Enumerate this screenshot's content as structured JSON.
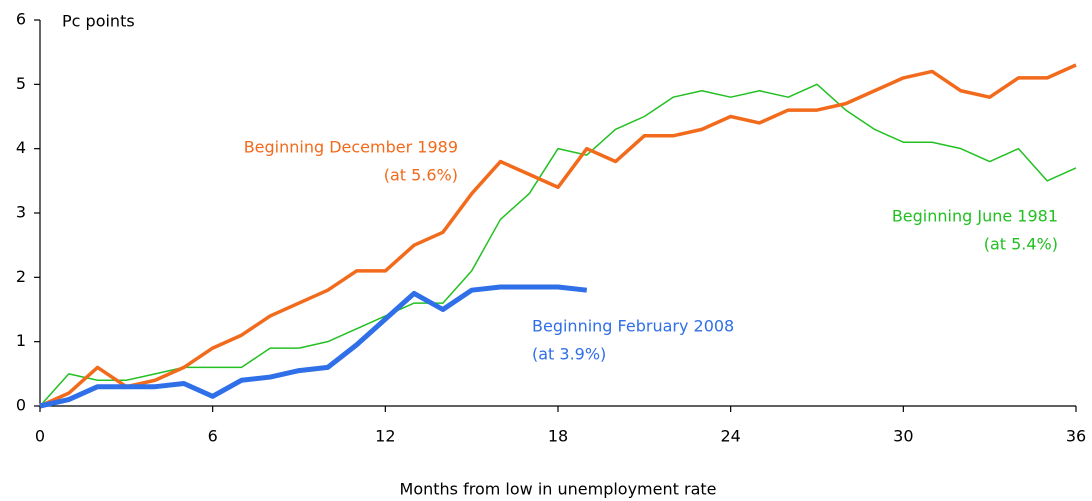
{
  "chart_data": {
    "type": "line",
    "y_label": "Pc points",
    "x_label": "Months from low in unemployment rate",
    "x": [
      0,
      1,
      2,
      3,
      4,
      5,
      6,
      7,
      8,
      9,
      10,
      11,
      12,
      13,
      14,
      15,
      16,
      17,
      18,
      19,
      20,
      21,
      22,
      23,
      24,
      25,
      26,
      27,
      28,
      29,
      30,
      31,
      32,
      33,
      34,
      35,
      36
    ],
    "xlim": [
      0,
      36
    ],
    "xticks": [
      0,
      6,
      12,
      18,
      24,
      30,
      36
    ],
    "ylim": [
      0,
      6
    ],
    "yticks": [
      0,
      1,
      2,
      3,
      4,
      5,
      6
    ],
    "series": [
      {
        "name": "Beginning June 1981",
        "rate_label": "(at 5.4%)",
        "color": "#22c022",
        "width": 1.5,
        "values": [
          0,
          0.5,
          0.4,
          0.4,
          0.5,
          0.6,
          0.6,
          0.6,
          0.9,
          0.9,
          1.0,
          1.2,
          1.4,
          1.6,
          1.6,
          2.1,
          2.9,
          3.3,
          4.0,
          3.9,
          4.3,
          4.5,
          4.8,
          4.9,
          4.8,
          4.9,
          4.8,
          5.0,
          4.6,
          4.3,
          4.1,
          4.1,
          4.0,
          3.8,
          4.0,
          3.5,
          3.7
        ]
      },
      {
        "name": "Beginning December 1989",
        "rate_label": "(at 5.6%)",
        "color": "#f26a1b",
        "width": 3.5,
        "values": [
          0,
          0.2,
          0.6,
          0.3,
          0.4,
          0.6,
          0.9,
          1.1,
          1.4,
          1.6,
          1.8,
          2.1,
          2.1,
          2.5,
          2.7,
          3.3,
          3.8,
          3.6,
          3.4,
          4.0,
          3.8,
          4.2,
          4.2,
          4.3,
          4.5,
          4.4,
          4.6,
          4.6,
          4.7,
          4.9,
          5.1,
          5.2,
          4.9,
          4.8,
          5.1,
          5.1,
          5.3
        ]
      },
      {
        "name": "Beginning February 2008",
        "rate_label": "(at 3.9%)",
        "color": "#2f6fe8",
        "width": 5,
        "values": [
          0,
          0.1,
          0.3,
          0.3,
          0.3,
          0.35,
          0.15,
          0.4,
          0.45,
          0.55,
          0.6,
          0.95,
          1.35,
          1.75,
          1.5,
          1.8,
          1.85,
          1.85,
          1.85,
          1.8,
          null,
          null,
          null,
          null,
          null,
          null,
          null,
          null,
          null,
          null,
          null,
          null,
          null,
          null,
          null,
          null,
          null
        ]
      }
    ]
  }
}
